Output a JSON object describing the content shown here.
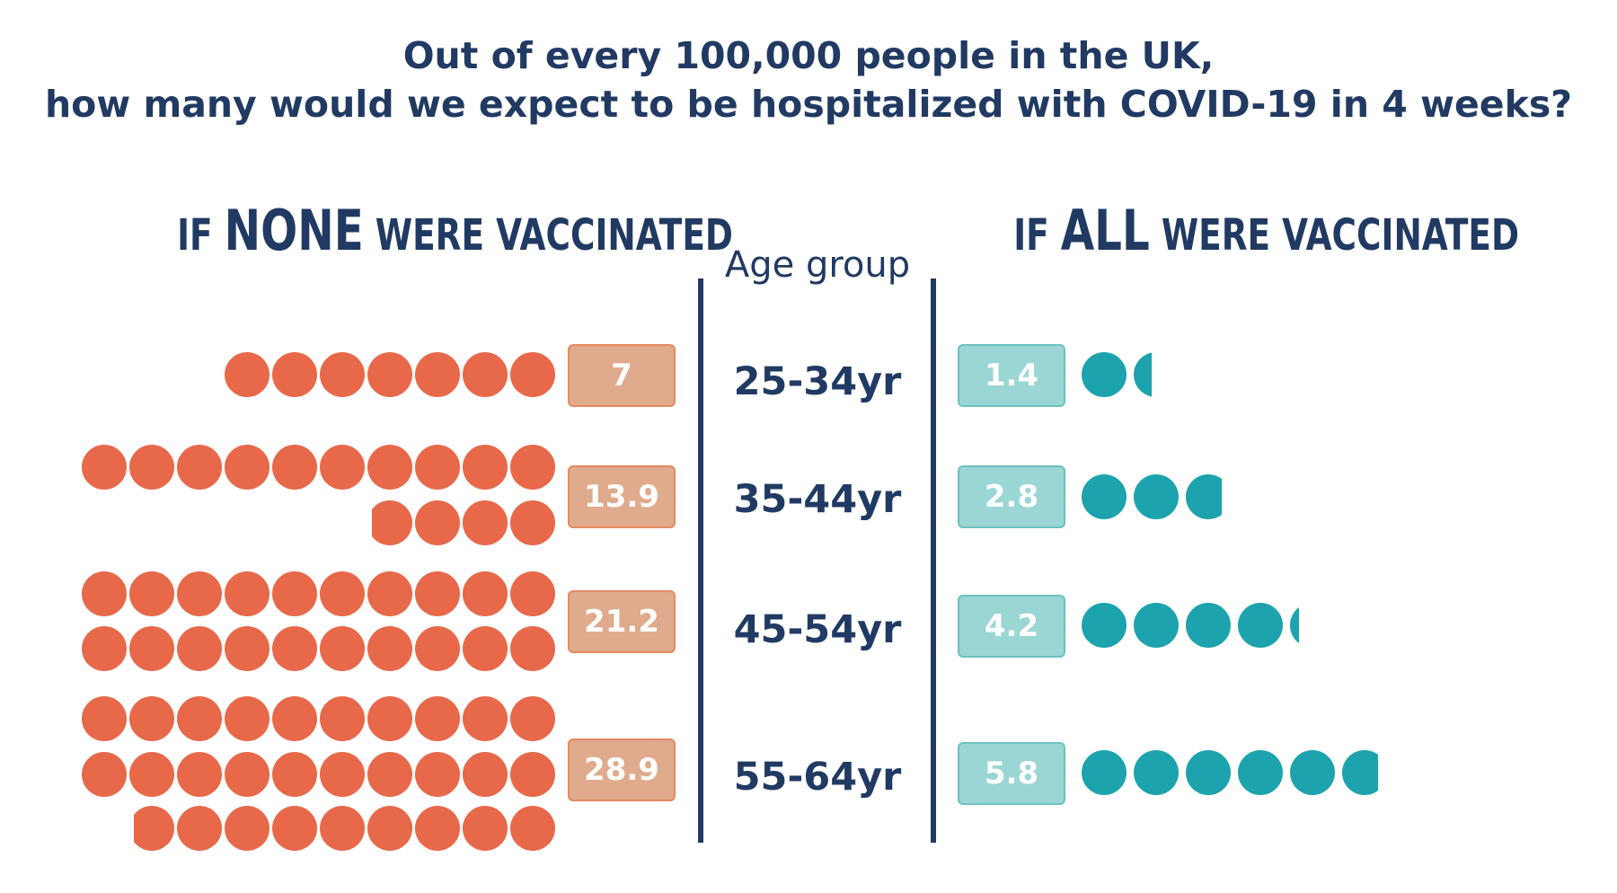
{
  "title": {
    "line1": "Out of every 100,000 people in the UK,",
    "line2": "how many would we expect to be hospitalized with COVID-19 in 4 weeks?"
  },
  "headings": {
    "left": {
      "prefix": "IF ",
      "emphasis": "NONE",
      "suffix": " WERE VACCINATED"
    },
    "right": {
      "prefix": "IF ",
      "emphasis": "ALL",
      "suffix": " WERE VACCINATED"
    },
    "column_label": "Age group"
  },
  "colors": {
    "unvaccinated_dot": "#e8684a",
    "unvaccinated_box": "#e0aa8c",
    "vaccinated_dot": "#1ca3ad",
    "vaccinated_box": "#9ad6d4",
    "text": "#213a63"
  },
  "chart_data": {
    "type": "pictograph",
    "unit": "1 circle = 1 person per 100,000",
    "categories": [
      "25-34yr",
      "35-44yr",
      "45-54yr",
      "55-64yr"
    ],
    "series": [
      {
        "name": "IF NONE WERE VACCINATED",
        "values": [
          7,
          13.9,
          21.2,
          28.9
        ],
        "labels": [
          "7",
          "13.9",
          "21.2",
          "28.9"
        ]
      },
      {
        "name": "IF ALL WERE VACCINATED",
        "values": [
          1.4,
          2.8,
          4.2,
          5.8
        ],
        "labels": [
          "1.4",
          "2.8",
          "4.2",
          "5.8"
        ]
      }
    ]
  }
}
